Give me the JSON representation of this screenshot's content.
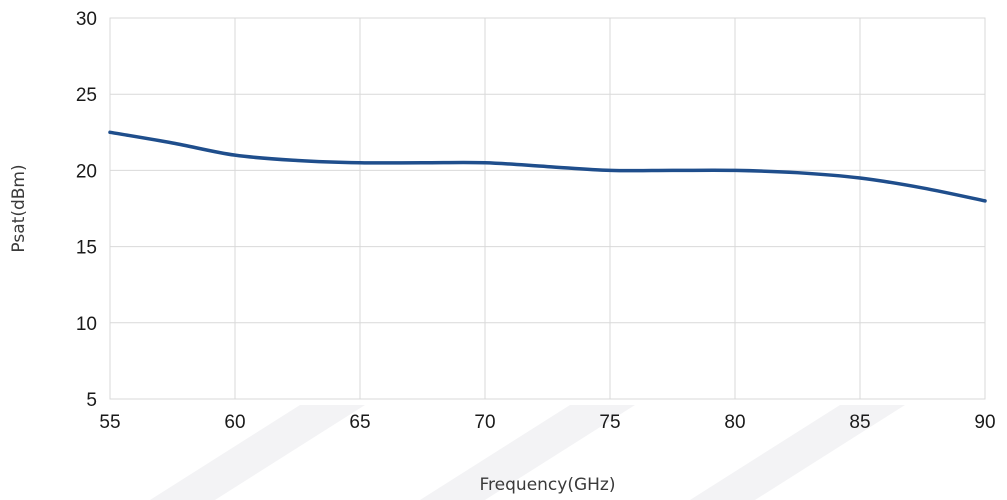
{
  "chart_data": {
    "type": "line",
    "title": "",
    "xlabel": "Frequency(GHz)",
    "ylabel": "Psat(dBm)",
    "xlim": [
      55,
      90
    ],
    "ylim": [
      5,
      30
    ],
    "x_ticks": [
      55,
      60,
      65,
      70,
      75,
      80,
      85,
      90
    ],
    "y_ticks": [
      5,
      10,
      15,
      20,
      25,
      30
    ],
    "grid": true,
    "legend": "none",
    "series": [
      {
        "color": "#1f4e8c",
        "x": [
          55,
          57.5,
          60,
          62.5,
          65,
          67.5,
          70,
          72.5,
          75,
          77.5,
          80,
          82.5,
          85,
          87.5,
          90
        ],
        "y": [
          22.5,
          21.8,
          21.0,
          20.65,
          20.5,
          20.5,
          20.5,
          20.25,
          20.0,
          20.0,
          20.0,
          19.85,
          19.5,
          18.85,
          18.0
        ]
      }
    ]
  },
  "colors": {
    "line": "#1f4e8c",
    "grid": "#d9d9d9",
    "watermark": "#f3f3f5"
  }
}
